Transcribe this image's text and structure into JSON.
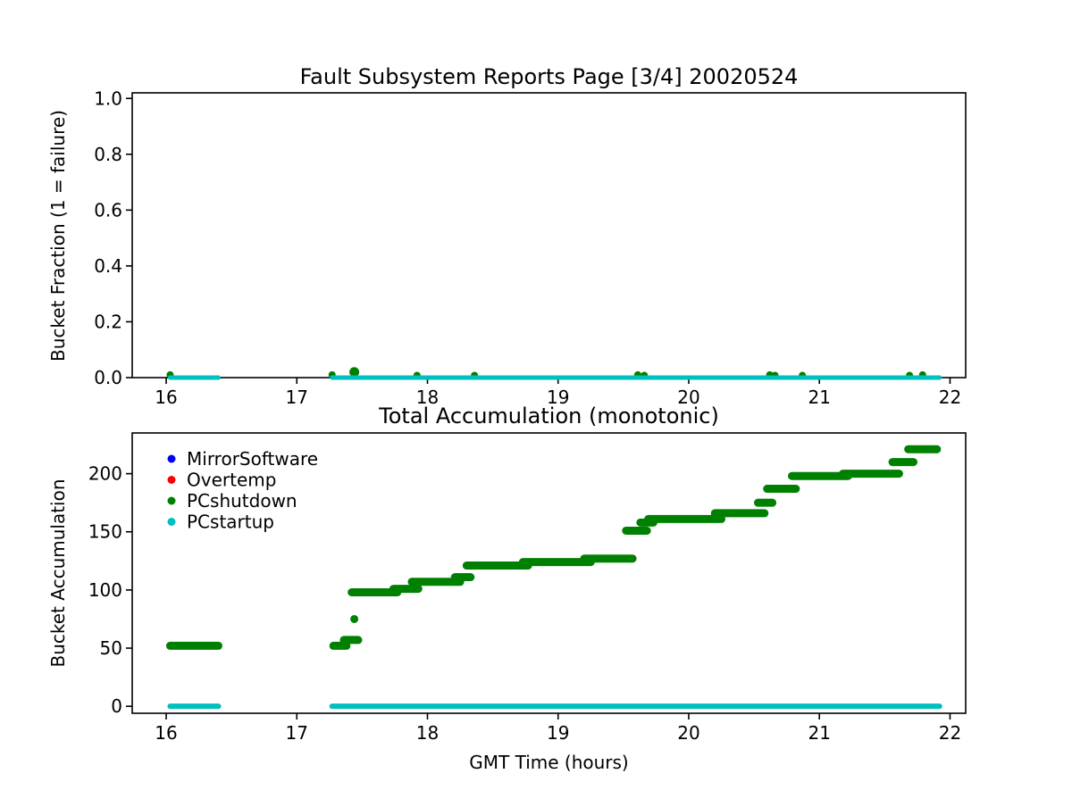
{
  "figure_bg": "#ffffff",
  "colors": {
    "blue": "#0000ff",
    "red": "#ff0000",
    "green": "#008000",
    "cyan": "#00bfbf",
    "axis": "#000000"
  },
  "chart_data": [
    {
      "type": "scatter",
      "title": "Fault Subsystem Reports Page [3/4] 20020524",
      "xlabel": "",
      "ylabel": "Bucket Fraction (1 = failure)",
      "xlim": [
        15.74,
        22.12
      ],
      "ylim": [
        0,
        1.02
      ],
      "xticks": [
        16,
        17,
        18,
        19,
        20,
        21,
        22
      ],
      "yticks": [
        {
          "v": 0.0,
          "label": "0.0"
        },
        {
          "v": 0.2,
          "label": "0.2"
        },
        {
          "v": 0.4,
          "label": "0.4"
        },
        {
          "v": 0.6,
          "label": "0.6"
        },
        {
          "v": 0.8,
          "label": "0.8"
        },
        {
          "v": 1.0,
          "label": "1.0"
        }
      ],
      "grid": false,
      "legend": null,
      "series": [
        {
          "name": "MirrorSoftware",
          "color": "#0000ff",
          "marker": "circle",
          "segments": [],
          "points": []
        },
        {
          "name": "Overtemp",
          "color": "#ff0000",
          "marker": "circle",
          "segments": [],
          "points": []
        },
        {
          "name": "PCshutdown",
          "color": "#008000",
          "marker": "circle",
          "segments": [],
          "points": [
            [
              16.03,
              0.01
            ],
            [
              17.27,
              0.01
            ],
            [
              17.44,
              0.02
            ],
            [
              17.92,
              0.008
            ],
            [
              18.36,
              0.008
            ],
            [
              19.61,
              0.01
            ],
            [
              19.66,
              0.008
            ],
            [
              20.62,
              0.01
            ],
            [
              20.66,
              0.008
            ],
            [
              20.87,
              0.008
            ],
            [
              21.69,
              0.008
            ],
            [
              21.79,
              0.01
            ]
          ]
        },
        {
          "name": "PCstartup",
          "color": "#00bfbf",
          "marker": "circle",
          "segments": [
            [
              16.03,
              16.4,
              0.0
            ],
            [
              17.27,
              21.92,
              0.0
            ]
          ],
          "points": []
        }
      ]
    },
    {
      "type": "scatter",
      "title": "Total Accumulation (monotonic)",
      "xlabel": "GMT Time (hours)",
      "ylabel": "Bucket Accumulation",
      "xlim": [
        15.74,
        22.12
      ],
      "ylim": [
        -6,
        235
      ],
      "xticks": [
        16,
        17,
        18,
        19,
        20,
        21,
        22
      ],
      "yticks": [
        {
          "v": 0,
          "label": "0"
        },
        {
          "v": 50,
          "label": "50"
        },
        {
          "v": 100,
          "label": "100"
        },
        {
          "v": 150,
          "label": "150"
        },
        {
          "v": 200,
          "label": "200"
        }
      ],
      "grid": false,
      "legend": {
        "position": "upper-left",
        "entries": [
          "MirrorSoftware",
          "Overtemp",
          "PCshutdown",
          "PCstartup"
        ]
      },
      "series": [
        {
          "name": "MirrorSoftware",
          "color": "#0000ff",
          "marker": "circle",
          "segments": [],
          "points": []
        },
        {
          "name": "Overtemp",
          "color": "#ff0000",
          "marker": "circle",
          "segments": [],
          "points": []
        },
        {
          "name": "PCshutdown",
          "color": "#008000",
          "marker": "circle",
          "segments": [
            [
              16.03,
              16.4,
              52
            ],
            [
              17.28,
              17.38,
              52
            ],
            [
              17.36,
              17.47,
              57
            ],
            [
              17.42,
              17.77,
              98
            ],
            [
              17.74,
              17.93,
              101
            ],
            [
              17.88,
              18.25,
              107
            ],
            [
              18.21,
              18.33,
              111
            ],
            [
              18.3,
              18.77,
              121
            ],
            [
              18.73,
              19.25,
              124
            ],
            [
              19.2,
              19.57,
              127
            ],
            [
              19.52,
              19.68,
              151
            ],
            [
              19.63,
              19.73,
              158
            ],
            [
              19.69,
              20.25,
              161
            ],
            [
              20.2,
              20.58,
              166
            ],
            [
              20.53,
              20.64,
              175
            ],
            [
              20.6,
              20.82,
              187
            ],
            [
              20.79,
              21.22,
              198
            ],
            [
              21.18,
              21.61,
              200
            ],
            [
              21.56,
              21.72,
              210
            ],
            [
              21.68,
              21.9,
              221
            ]
          ],
          "points": [
            [
              17.44,
              75
            ]
          ]
        },
        {
          "name": "PCstartup",
          "color": "#00bfbf",
          "marker": "circle",
          "segments": [
            [
              16.03,
              16.4,
              0
            ],
            [
              17.27,
              21.92,
              0
            ]
          ],
          "points": []
        }
      ]
    }
  ]
}
